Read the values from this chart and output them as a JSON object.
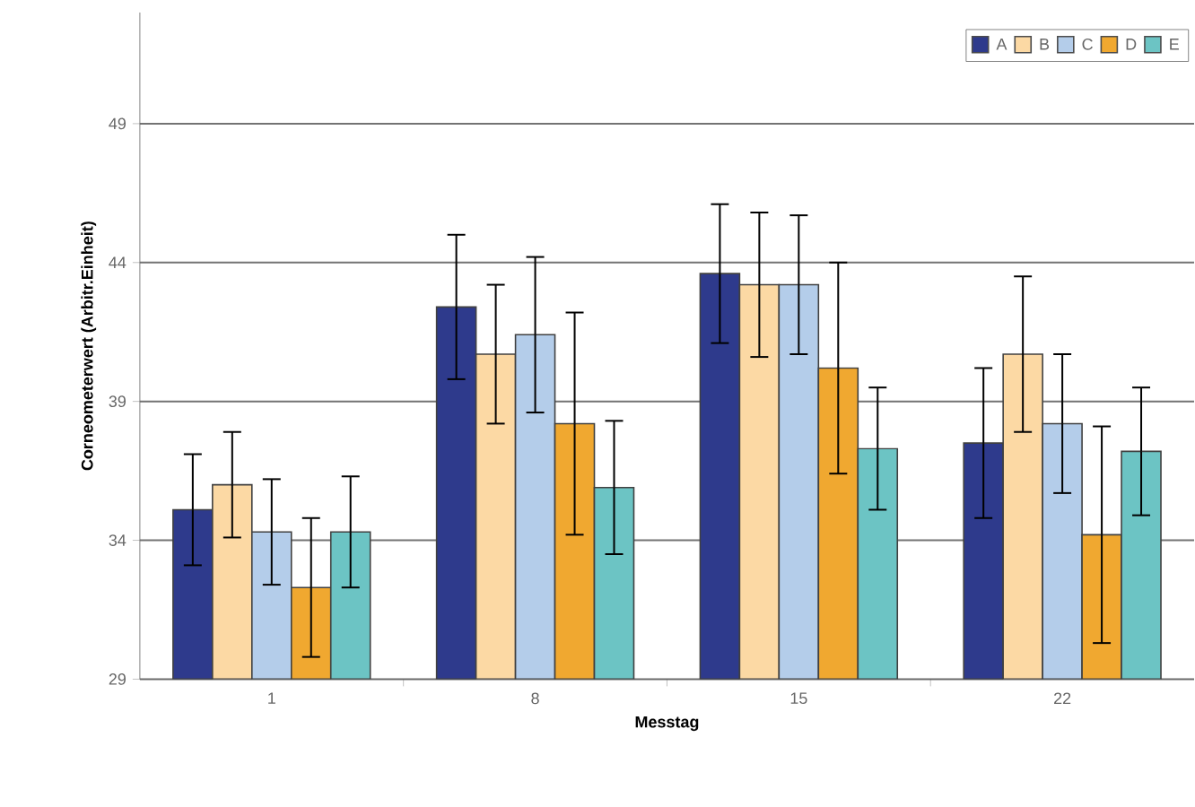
{
  "chart_data": {
    "type": "bar",
    "xlabel": "Messtag",
    "ylabel": "Corneometerwert (Arbitr.Einheit)",
    "categories": [
      "1",
      "8",
      "15",
      "22"
    ],
    "series": [
      {
        "name": "A",
        "color": "#2e3a8c",
        "values": [
          35.1,
          42.4,
          43.6,
          37.5
        ],
        "errors": [
          2.0,
          2.6,
          2.5,
          2.7
        ]
      },
      {
        "name": "B",
        "color": "#fcd9a4",
        "values": [
          36.0,
          40.7,
          43.2,
          40.7
        ],
        "errors": [
          1.9,
          2.5,
          2.6,
          2.8
        ]
      },
      {
        "name": "C",
        "color": "#b4cdea",
        "values": [
          34.3,
          41.4,
          43.2,
          38.2
        ],
        "errors": [
          1.9,
          2.8,
          2.5,
          2.5
        ]
      },
      {
        "name": "D",
        "color": "#f0a830",
        "values": [
          32.3,
          38.2,
          40.2,
          34.2
        ],
        "errors": [
          2.5,
          4.0,
          3.8,
          3.9
        ]
      },
      {
        "name": "E",
        "color": "#6cc4c4",
        "values": [
          34.3,
          35.9,
          37.3,
          37.2
        ],
        "errors": [
          2.0,
          2.4,
          2.2,
          2.3
        ]
      }
    ],
    "ylim": [
      29,
      53
    ],
    "yticks": [
      29,
      34,
      39,
      44,
      49
    ],
    "grid": "y",
    "legend": "top right"
  }
}
